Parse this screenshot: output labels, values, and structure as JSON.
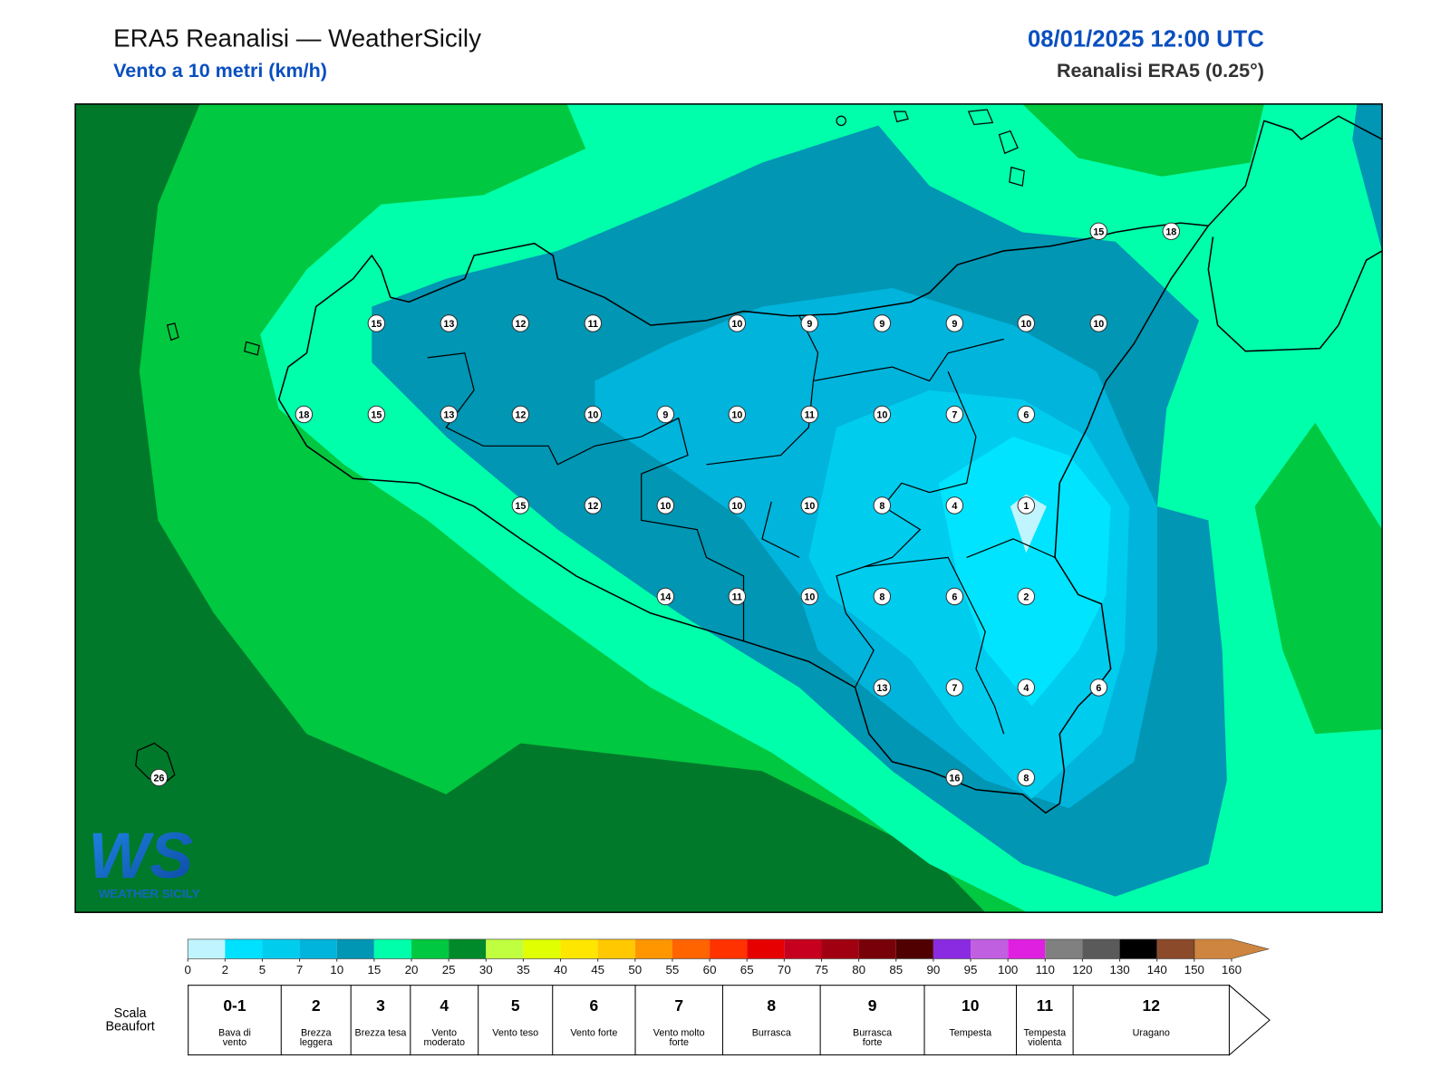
{
  "header": {
    "title": "ERA5 Reanalisi — WeatherSicily",
    "subtitle": "Vento a 10 metri (km/h)",
    "datetime": "08/01/2025 12:00 UTC",
    "source": "Reanalisi ERA5 (0.25°)"
  },
  "map": {
    "station_values": [
      15,
      18,
      15,
      13,
      12,
      11,
      10,
      9,
      9,
      9,
      10,
      10,
      18,
      15,
      13,
      12,
      10,
      9,
      10,
      11,
      10,
      7,
      6,
      15,
      12,
      10,
      10,
      10,
      8,
      4,
      1,
      14,
      11,
      10,
      8,
      6,
      2,
      13,
      7,
      4,
      6,
      16,
      8,
      26
    ],
    "logo_text": "WS",
    "logo_subtitle": "WEATHER SICILY"
  },
  "colorbar": {
    "ticks": [
      0,
      2,
      5,
      7,
      10,
      15,
      20,
      25,
      30,
      35,
      40,
      45,
      50,
      55,
      60,
      65,
      70,
      75,
      80,
      85,
      90,
      95,
      100,
      110,
      120,
      130,
      140,
      150,
      160
    ],
    "colors": [
      "#c0f5ff",
      "#00e0ff",
      "#00ccee",
      "#00b4dc",
      "#0096b4",
      "#00ffaa",
      "#00c840",
      "#008a2a",
      "#c0ff40",
      "#e0ff00",
      "#ffe600",
      "#ffc800",
      "#ff9600",
      "#ff6400",
      "#ff3200",
      "#e60000",
      "#c80020",
      "#a00010",
      "#780008",
      "#500000",
      "#8a2be2",
      "#c060e0",
      "#e020e0",
      "#808080",
      "#5a5a5a",
      "#000000",
      "#8b4a2a",
      "#cd853f"
    ]
  },
  "beaufort": {
    "label": "Scala Beaufort",
    "forces": [
      {
        "force": "0-1",
        "description": "Bava di vento"
      },
      {
        "force": 2,
        "description": "Brezza leggera"
      },
      {
        "force": 3,
        "description": "Brezza tesa"
      },
      {
        "force": 4,
        "description": "Vento moderato"
      },
      {
        "force": 5,
        "description": "Vento teso"
      },
      {
        "force": 6,
        "description": "Vento forte"
      },
      {
        "force": 7,
        "description": "Vento molto forte"
      },
      {
        "force": 8,
        "description": "Burrasca"
      },
      {
        "force": 9,
        "description": "Burrasca forte"
      },
      {
        "force": 10,
        "description": "Tempesta"
      },
      {
        "force": 11,
        "description": "Tempesta violenta"
      },
      {
        "force": 12,
        "description": "Uragano"
      }
    ]
  }
}
